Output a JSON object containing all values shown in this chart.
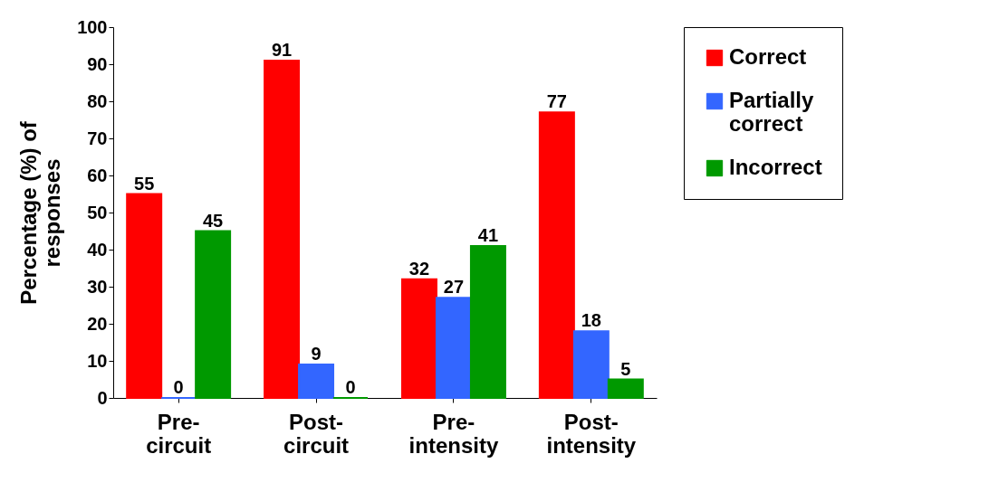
{
  "chart_data": {
    "type": "bar",
    "ylabel": "Percentage (%) of responses",
    "categories": [
      "Pre-circuit",
      "Post-circuit",
      "Pre-intensity",
      "Post-intensity"
    ],
    "series": [
      {
        "name": "Correct",
        "color": "#ff0000",
        "values": [
          55,
          91,
          32,
          77
        ]
      },
      {
        "name": "Partially correct",
        "color": "#3366ff",
        "values": [
          0,
          9,
          27,
          18
        ]
      },
      {
        "name": "Incorrect",
        "color": "#009900",
        "values": [
          45,
          0,
          41,
          5
        ]
      }
    ],
    "ylim": [
      0,
      100
    ],
    "yticks": [
      0,
      10,
      20,
      30,
      40,
      50,
      60,
      70,
      80,
      90,
      100
    ],
    "data_labels": true,
    "legend": "right",
    "grid": false
  }
}
